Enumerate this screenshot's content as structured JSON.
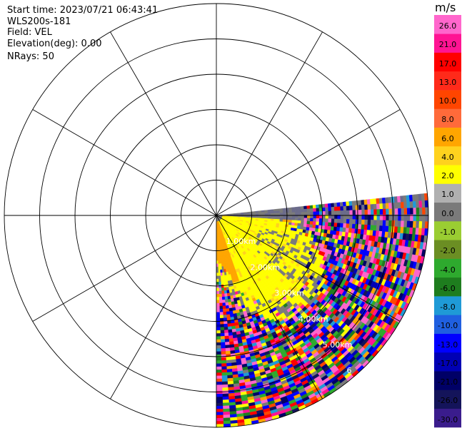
{
  "header": {
    "start_time": "Start time: 2023/07/21 06:43:41",
    "instrument": "WLS200s-181",
    "field": "Field: VEL",
    "elevation": "Elevation(deg): 0.00",
    "nrays": "NRays: 50"
  },
  "chart_data": {
    "type": "heatmap",
    "projection": "polar-ppi",
    "field": "VEL",
    "units": "m/s",
    "range_ring_labels": [
      "1.00km",
      "2.00km",
      "3.00km",
      "4.00km",
      "5.00km",
      "6"
    ],
    "range_ring_km": [
      1,
      2,
      3,
      4,
      5,
      6
    ],
    "max_range_km": 6,
    "sector_azimuth_deg": [
      90,
      180
    ],
    "radial_spokes_deg": 30,
    "colorbar": {
      "ticks": [
        "26.0",
        "21.0",
        "17.0",
        "13.0",
        "10.0",
        "8.0",
        "6.0",
        "4.0",
        "2.0",
        "1.0",
        "0.0",
        "-1.0",
        "-2.0",
        "-4.0",
        "-6.0",
        "-8.0",
        "-10.0",
        "-13.0",
        "-17.0",
        "-21.0",
        "-26.0",
        "-30.0"
      ],
      "colors": [
        "#3a1c8c",
        "#14145a",
        "#000066",
        "#0000b4",
        "#0000ff",
        "#1f5fe0",
        "#1f9ad6",
        "#1e7d1e",
        "#2eaa2e",
        "#6b8e23",
        "#9acd32",
        "#7a7a7a",
        "#b0b0b0",
        "#ffff00",
        "#ffd21e",
        "#ffa500",
        "#ff6a3a",
        "#ff4500",
        "#ff2a1a",
        "#ff0000",
        "#ff1493",
        "#ff66cc"
      ]
    },
    "near_field_values_ms": [
      3.0,
      5.0
    ],
    "far_field": "noisy mixed velocities"
  }
}
